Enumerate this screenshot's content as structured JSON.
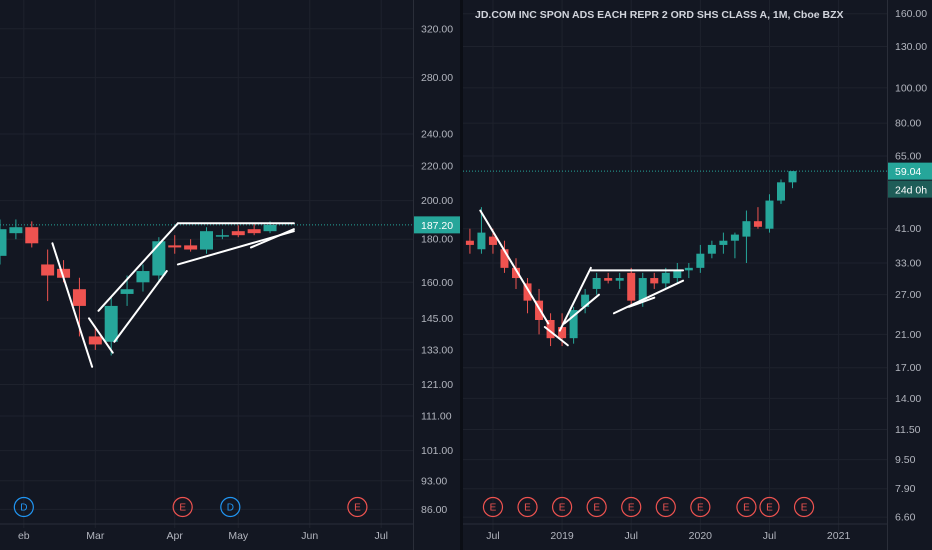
{
  "colors": {
    "up": "#26a69a",
    "down": "#ef5350",
    "grid": "#1e222d",
    "axis_text": "#b2b5be",
    "price_tag": "#26a69a",
    "drawing": "#ffffff",
    "event_e": "#ef5350",
    "event_d": "#2196f3"
  },
  "chart_data": [
    {
      "type": "candlestick",
      "title": "",
      "scale": "log",
      "y_ticks": [
        86,
        93,
        101,
        111,
        121,
        133,
        145,
        160,
        180,
        200,
        220,
        240,
        280,
        320
      ],
      "y_tick_labels": [
        "86.00",
        "93.00",
        "101.00",
        "111.00",
        "121.00",
        "133.00",
        "145.00",
        "160.00",
        "180.00",
        "200.00",
        "220.00",
        "240.00",
        "280.00",
        "320.00"
      ],
      "ylim": [
        84,
        335
      ],
      "x_labels": [
        {
          "label": "eb",
          "x": 1.5
        },
        {
          "label": "Mar",
          "x": 6
        },
        {
          "label": "Apr",
          "x": 11
        },
        {
          "label": "May",
          "x": 15
        },
        {
          "label": "Jun",
          "x": 19.5
        },
        {
          "label": "Jul",
          "x": 24
        }
      ],
      "xlim": [
        0,
        26
      ],
      "last_price_label": "187.20",
      "last_price": 187.2,
      "candles": [
        {
          "x": 0,
          "o": 172,
          "h": 190,
          "l": 168,
          "c": 185
        },
        {
          "x": 1,
          "o": 183,
          "h": 190,
          "l": 180,
          "c": 186
        },
        {
          "x": 2,
          "o": 186,
          "h": 189,
          "l": 176,
          "c": 178
        },
        {
          "x": 3,
          "o": 168,
          "h": 175,
          "l": 152,
          "c": 163
        },
        {
          "x": 4,
          "o": 166,
          "h": 170,
          "l": 160,
          "c": 162
        },
        {
          "x": 5,
          "o": 157,
          "h": 162,
          "l": 138,
          "c": 150
        },
        {
          "x": 6,
          "o": 138,
          "h": 142,
          "l": 133,
          "c": 135
        },
        {
          "x": 7,
          "o": 136,
          "h": 154,
          "l": 131,
          "c": 150
        },
        {
          "x": 8,
          "o": 155,
          "h": 163,
          "l": 150,
          "c": 157
        },
        {
          "x": 9,
          "o": 160,
          "h": 168,
          "l": 156,
          "c": 165
        },
        {
          "x": 10,
          "o": 163,
          "h": 181,
          "l": 160,
          "c": 179
        },
        {
          "x": 11,
          "o": 177,
          "h": 182,
          "l": 173,
          "c": 176
        },
        {
          "x": 12,
          "o": 177,
          "h": 180,
          "l": 174,
          "c": 175
        },
        {
          "x": 13,
          "o": 175,
          "h": 186,
          "l": 173,
          "c": 184
        },
        {
          "x": 14,
          "o": 182,
          "h": 185,
          "l": 180,
          "c": 182
        },
        {
          "x": 15,
          "o": 184,
          "h": 187,
          "l": 181,
          "c": 182
        },
        {
          "x": 16,
          "o": 185,
          "h": 188,
          "l": 182,
          "c": 183
        },
        {
          "x": 17,
          "o": 184,
          "h": 189,
          "l": 183,
          "c": 187.2
        }
      ],
      "trendlines": [
        {
          "p1": [
            3.3,
            178
          ],
          "p2": [
            5.8,
            127
          ]
        },
        {
          "p1": [
            5.6,
            145
          ],
          "p2": [
            7.1,
            132
          ]
        },
        {
          "p1": [
            6.2,
            148
          ],
          "p2": [
            11.2,
            188
          ]
        },
        {
          "p1": [
            7.2,
            136
          ],
          "p2": [
            10.5,
            165
          ]
        },
        {
          "p1": [
            11.2,
            188
          ],
          "p2": [
            18.5,
            188
          ]
        },
        {
          "p1": [
            11.2,
            168
          ],
          "p2": [
            18.5,
            184
          ]
        },
        {
          "p1": [
            15.8,
            176
          ],
          "p2": [
            18.5,
            185
          ]
        }
      ],
      "events": [
        {
          "x": 1.5,
          "label": "D",
          "kind": "dividend"
        },
        {
          "x": 11.5,
          "label": "E",
          "kind": "earnings"
        },
        {
          "x": 14.5,
          "label": "D",
          "kind": "dividend"
        },
        {
          "x": 22.5,
          "label": "E",
          "kind": "earnings"
        }
      ]
    },
    {
      "type": "candlestick",
      "title": "JD.COM INC SPON ADS EACH REPR 2 ORD SHS CLASS A, 1M, Cboe BZX",
      "scale": "log",
      "y_ticks": [
        6.6,
        7.9,
        9.5,
        11.5,
        14,
        17,
        21,
        27,
        33,
        41,
        65,
        80,
        100,
        130,
        160
      ],
      "y_tick_labels": [
        "6.60",
        "7.90",
        "9.50",
        "11.50",
        "14.00",
        "17.00",
        "21.00",
        "27.00",
        "33.00",
        "41.00",
        "65.00",
        "80.00",
        "100.00",
        "130.00",
        "160.00"
      ],
      "ylim": [
        6.4,
        168
      ],
      "x_labels": [
        {
          "label": "Jul",
          "x": 2
        },
        {
          "label": "2019",
          "x": 8
        },
        {
          "label": "Jul",
          "x": 14
        },
        {
          "label": "2020",
          "x": 20
        },
        {
          "label": "Jul",
          "x": 26
        },
        {
          "label": "2021",
          "x": 32
        }
      ],
      "xlim": [
        -0.6,
        36.2
      ],
      "last_price_label": "59.04",
      "last_price": 59.04,
      "countdown_label": "24d 0h",
      "candles": [
        {
          "x": 0,
          "o": 38,
          "h": 41,
          "l": 35,
          "c": 37
        },
        {
          "x": 1,
          "o": 36,
          "h": 47,
          "l": 35,
          "c": 40
        },
        {
          "x": 2,
          "o": 39,
          "h": 41,
          "l": 35,
          "c": 37
        },
        {
          "x": 3,
          "o": 36,
          "h": 38,
          "l": 31,
          "c": 32
        },
        {
          "x": 4,
          "o": 32,
          "h": 34,
          "l": 28,
          "c": 30
        },
        {
          "x": 5,
          "o": 29,
          "h": 30,
          "l": 24,
          "c": 26
        },
        {
          "x": 6,
          "o": 26,
          "h": 28,
          "l": 21,
          "c": 23
        },
        {
          "x": 7,
          "o": 23,
          "h": 24,
          "l": 19.5,
          "c": 20.5
        },
        {
          "x": 8,
          "o": 22,
          "h": 24,
          "l": 19.5,
          "c": 20.5
        },
        {
          "x": 9,
          "o": 20.5,
          "h": 25,
          "l": 19.8,
          "c": 24.5
        },
        {
          "x": 10,
          "o": 25,
          "h": 28,
          "l": 24,
          "c": 27
        },
        {
          "x": 11,
          "o": 28,
          "h": 31,
          "l": 27,
          "c": 30
        },
        {
          "x": 12,
          "o": 30,
          "h": 31,
          "l": 29,
          "c": 29.5
        },
        {
          "x": 13,
          "o": 29.5,
          "h": 31,
          "l": 28,
          "c": 30
        },
        {
          "x": 14,
          "o": 31,
          "h": 32,
          "l": 25,
          "c": 26
        },
        {
          "x": 15,
          "o": 26,
          "h": 31,
          "l": 25,
          "c": 30
        },
        {
          "x": 16,
          "o": 30,
          "h": 31,
          "l": 28,
          "c": 29
        },
        {
          "x": 17,
          "o": 29,
          "h": 32,
          "l": 28,
          "c": 31
        },
        {
          "x": 18,
          "o": 30,
          "h": 33,
          "l": 29,
          "c": 31.5
        },
        {
          "x": 19,
          "o": 31.5,
          "h": 33,
          "l": 30,
          "c": 32
        },
        {
          "x": 20,
          "o": 32,
          "h": 37,
          "l": 31,
          "c": 35
        },
        {
          "x": 21,
          "o": 35,
          "h": 38,
          "l": 34,
          "c": 37
        },
        {
          "x": 22,
          "o": 37,
          "h": 40,
          "l": 35,
          "c": 38
        },
        {
          "x": 23,
          "o": 38,
          "h": 40,
          "l": 34,
          "c": 39.5
        },
        {
          "x": 24,
          "o": 39,
          "h": 46,
          "l": 33,
          "c": 43
        },
        {
          "x": 25,
          "o": 43,
          "h": 47,
          "l": 41,
          "c": 41.5
        },
        {
          "x": 26,
          "o": 41,
          "h": 51,
          "l": 40,
          "c": 49
        },
        {
          "x": 27,
          "o": 49,
          "h": 56,
          "l": 48,
          "c": 55
        },
        {
          "x": 28,
          "o": 55,
          "h": 59.04,
          "l": 53,
          "c": 59.04
        }
      ],
      "trendlines": [
        {
          "p1": [
            0.9,
            46
          ],
          "p2": [
            6.8,
            22.5
          ]
        },
        {
          "p1": [
            6.5,
            22
          ],
          "p2": [
            8.5,
            19.6
          ]
        },
        {
          "p1": [
            7.8,
            21.5
          ],
          "p2": [
            10.5,
            32
          ]
        },
        {
          "p1": [
            8.2,
            22.5
          ],
          "p2": [
            11.2,
            27
          ]
        },
        {
          "p1": [
            10.5,
            31.5
          ],
          "p2": [
            18.5,
            31.5
          ]
        },
        {
          "p1": [
            12.5,
            24
          ],
          "p2": [
            18.5,
            29.5
          ]
        },
        {
          "p1": [
            13.8,
            25
          ],
          "p2": [
            16,
            26.5
          ]
        }
      ],
      "events": [
        {
          "x": 2,
          "label": "E",
          "kind": "earnings"
        },
        {
          "x": 5,
          "label": "E",
          "kind": "earnings"
        },
        {
          "x": 8,
          "label": "E",
          "kind": "earnings"
        },
        {
          "x": 11,
          "label": "E",
          "kind": "earnings"
        },
        {
          "x": 14,
          "label": "E",
          "kind": "earnings"
        },
        {
          "x": 17,
          "label": "E",
          "kind": "earnings"
        },
        {
          "x": 20,
          "label": "E",
          "kind": "earnings"
        },
        {
          "x": 24,
          "label": "E",
          "kind": "earnings"
        },
        {
          "x": 26,
          "label": "E",
          "kind": "earnings"
        },
        {
          "x": 29,
          "label": "E",
          "kind": "earnings"
        }
      ]
    }
  ]
}
